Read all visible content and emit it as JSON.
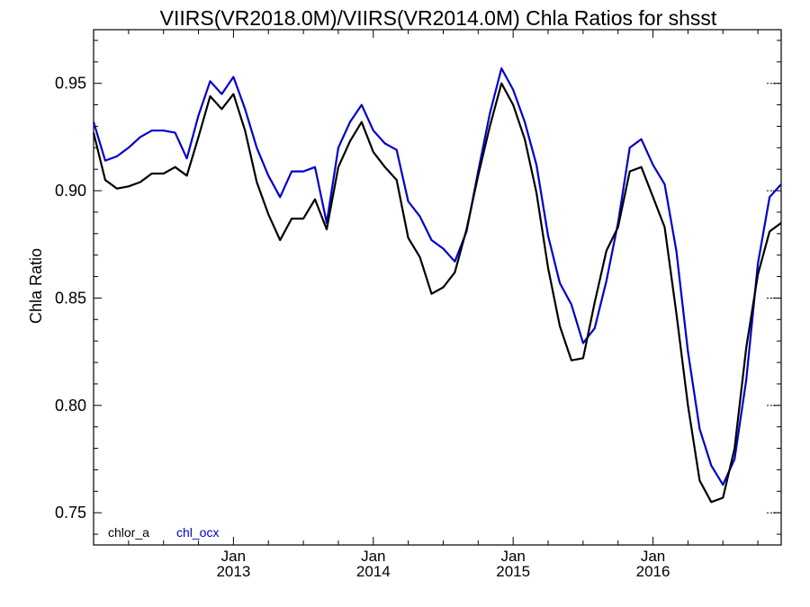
{
  "chart_data": {
    "type": "line",
    "title": "VIIRS(VR2018.0M)/VIIRS(VR2014.0M)  Chla Ratios for shsst",
    "ylabel": "Chla Ratio",
    "xlabel": "",
    "ylim": [
      0.735,
      0.975
    ],
    "xlim": [
      "2012-01",
      "2016-12"
    ],
    "yticks": [
      "0.75",
      "0.80",
      "0.85",
      "0.90",
      "0.95"
    ],
    "xticks": [
      {
        "month": "Jan",
        "year": "2013",
        "date": "2013-01"
      },
      {
        "month": "Jan",
        "year": "2014",
        "date": "2014-01"
      },
      {
        "month": "Jan",
        "year": "2015",
        "date": "2015-01"
      },
      {
        "month": "Jan",
        "year": "2016",
        "date": "2016-01"
      }
    ],
    "legend_position": "bottom-left",
    "dates": [
      "2012-01",
      "2012-02",
      "2012-03",
      "2012-04",
      "2012-05",
      "2012-06",
      "2012-07",
      "2012-08",
      "2012-09",
      "2012-10",
      "2012-11",
      "2012-12",
      "2013-01",
      "2013-02",
      "2013-03",
      "2013-04",
      "2013-05",
      "2013-06",
      "2013-07",
      "2013-08",
      "2013-09",
      "2013-10",
      "2013-11",
      "2013-12",
      "2014-01",
      "2014-02",
      "2014-03",
      "2014-04",
      "2014-05",
      "2014-06",
      "2014-07",
      "2014-08",
      "2014-09",
      "2014-10",
      "2014-11",
      "2014-12",
      "2015-01",
      "2015-02",
      "2015-03",
      "2015-04",
      "2015-05",
      "2015-06",
      "2015-07",
      "2015-08",
      "2015-09",
      "2015-10",
      "2015-11",
      "2015-12",
      "2016-01",
      "2016-02",
      "2016-03",
      "2016-04",
      "2016-05",
      "2016-06",
      "2016-07",
      "2016-08",
      "2016-09",
      "2016-10",
      "2016-11",
      "2016-12"
    ],
    "series": [
      {
        "name": "chlor_a",
        "color": "#000000",
        "values": [
          0.927,
          0.905,
          0.901,
          0.902,
          0.904,
          0.908,
          0.908,
          0.911,
          0.907,
          0.925,
          0.944,
          0.938,
          0.945,
          0.928,
          0.904,
          0.889,
          0.877,
          0.887,
          0.887,
          0.896,
          0.882,
          0.911,
          0.923,
          0.932,
          0.918,
          0.911,
          0.905,
          0.878,
          0.869,
          0.852,
          0.855,
          0.862,
          0.882,
          0.907,
          0.93,
          0.95,
          0.94,
          0.924,
          0.899,
          0.864,
          0.837,
          0.821,
          0.822,
          0.848,
          0.872,
          0.883,
          0.909,
          0.911,
          0.897,
          0.883,
          0.843,
          0.8,
          0.765,
          0.755,
          0.757,
          0.78,
          0.827,
          0.861,
          0.881,
          0.885
        ]
      },
      {
        "name": "chl_ocx",
        "color": "#0000cc",
        "values": [
          0.932,
          0.914,
          0.916,
          0.92,
          0.925,
          0.928,
          0.928,
          0.927,
          0.915,
          0.935,
          0.951,
          0.945,
          0.953,
          0.938,
          0.92,
          0.907,
          0.897,
          0.909,
          0.909,
          0.911,
          0.885,
          0.92,
          0.932,
          0.94,
          0.928,
          0.922,
          0.919,
          0.895,
          0.888,
          0.877,
          0.873,
          0.867,
          0.881,
          0.909,
          0.936,
          0.957,
          0.947,
          0.932,
          0.912,
          0.879,
          0.857,
          0.847,
          0.829,
          0.836,
          0.858,
          0.885,
          0.92,
          0.924,
          0.912,
          0.903,
          0.872,
          0.825,
          0.789,
          0.772,
          0.763,
          0.775,
          0.812,
          0.866,
          0.897,
          0.903
        ]
      }
    ]
  }
}
